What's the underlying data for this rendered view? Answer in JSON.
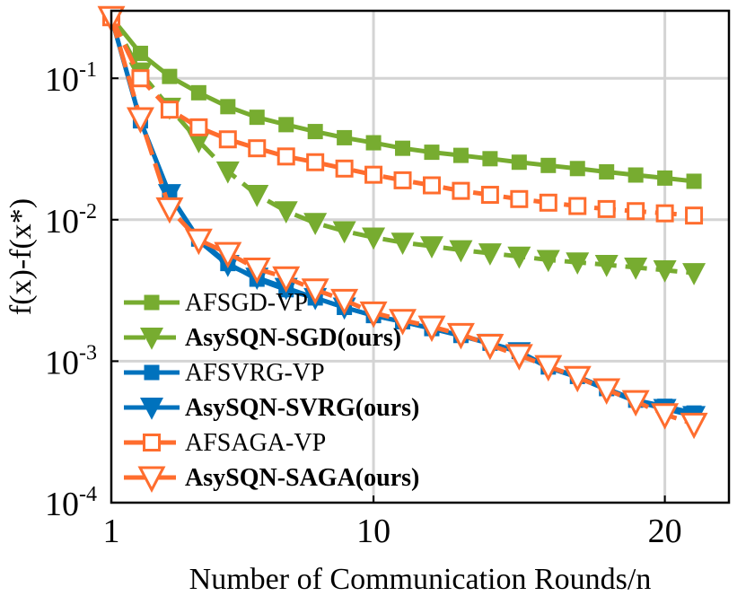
{
  "chart_data": {
    "type": "line",
    "y_scale": "log",
    "xlabel": "Number of Communication Rounds/n",
    "ylabel": "f(x)-f(x*)",
    "xlim": [
      1,
      22.2
    ],
    "ylim": [
      0.0001,
      0.3
    ],
    "xticks": [
      {
        "value": 1,
        "label": "1"
      },
      {
        "value": 10,
        "label": "10"
      },
      {
        "value": 20,
        "label": "20"
      }
    ],
    "yticks": [
      {
        "value": 0.1,
        "base": "10",
        "exp": "-1"
      },
      {
        "value": 0.01,
        "base": "10",
        "exp": "-2"
      },
      {
        "value": 0.001,
        "base": "10",
        "exp": "-3"
      },
      {
        "value": 0.0001,
        "base": "10",
        "exp": "-4"
      }
    ],
    "grid": true,
    "legend_position": "bottom-left",
    "x": [
      1,
      2,
      3,
      4,
      5,
      6,
      7,
      8,
      9,
      10,
      11,
      12,
      13,
      14,
      15,
      16,
      17,
      18,
      19,
      20,
      21
    ],
    "series": [
      {
        "name": "AFSGD-VP",
        "bold": false,
        "color": "#77ac30",
        "dashed": false,
        "marker": "square-filled",
        "values": [
          0.27,
          0.15,
          0.103,
          0.079,
          0.063,
          0.053,
          0.047,
          0.042,
          0.038,
          0.035,
          0.032,
          0.03,
          0.0285,
          0.027,
          0.0255,
          0.0242,
          0.023,
          0.0218,
          0.0207,
          0.0197,
          0.0187
        ]
      },
      {
        "name": "AsySQN-SGD(ours)",
        "bold": true,
        "color": "#77ac30",
        "dashed": true,
        "marker": "triangle-down-filled",
        "values": [
          0.27,
          0.11,
          0.062,
          0.036,
          0.022,
          0.015,
          0.0115,
          0.0095,
          0.0083,
          0.0075,
          0.0069,
          0.0065,
          0.0061,
          0.0058,
          0.0055,
          0.0052,
          0.005,
          0.0048,
          0.0046,
          0.0044,
          0.0042
        ]
      },
      {
        "name": "AFSVRG-VP",
        "bold": false,
        "color": "#0072bd",
        "dashed": false,
        "marker": "square-filled",
        "values": [
          0.27,
          0.05,
          0.015,
          0.0073,
          0.0049,
          0.0038,
          0.0032,
          0.0028,
          0.0024,
          0.0021,
          0.0019,
          0.0017,
          0.00152,
          0.00134,
          0.00117,
          0.00091,
          0.00078,
          0.00064,
          0.00053,
          0.00048,
          0.00043
        ]
      },
      {
        "name": "AsySQN-SVRG(ours)",
        "bold": true,
        "color": "#0072bd",
        "dashed": false,
        "marker": "triangle-down-filled",
        "values": [
          0.27,
          0.05,
          0.0152,
          0.0071,
          0.0048,
          0.0039,
          0.0033,
          0.0028,
          0.0024,
          0.0021,
          0.0019,
          0.0017,
          0.00151,
          0.00133,
          0.00116,
          0.0009,
          0.00077,
          0.00063,
          0.00052,
          0.00046,
          0.00041
        ]
      },
      {
        "name": "AFSAGA-VP",
        "bold": false,
        "color": "#ff6d2e",
        "dashed": true,
        "marker": "square-open",
        "values": [
          0.27,
          0.1,
          0.06,
          0.045,
          0.037,
          0.032,
          0.028,
          0.0255,
          0.023,
          0.0208,
          0.019,
          0.0175,
          0.016,
          0.015,
          0.014,
          0.0132,
          0.0125,
          0.0119,
          0.0115,
          0.0111,
          0.0107
        ]
      },
      {
        "name": "AsySQN-SAGA(ours)",
        "bold": true,
        "color": "#ff6d2e",
        "dashed": true,
        "marker": "triangle-down-open",
        "values": [
          0.27,
          0.052,
          0.012,
          0.0072,
          0.0058,
          0.0045,
          0.0039,
          0.0032,
          0.0027,
          0.0022,
          0.00195,
          0.00175,
          0.00155,
          0.0013,
          0.0011,
          0.00092,
          0.00077,
          0.00063,
          0.00052,
          0.00042,
          0.00036
        ]
      }
    ]
  }
}
